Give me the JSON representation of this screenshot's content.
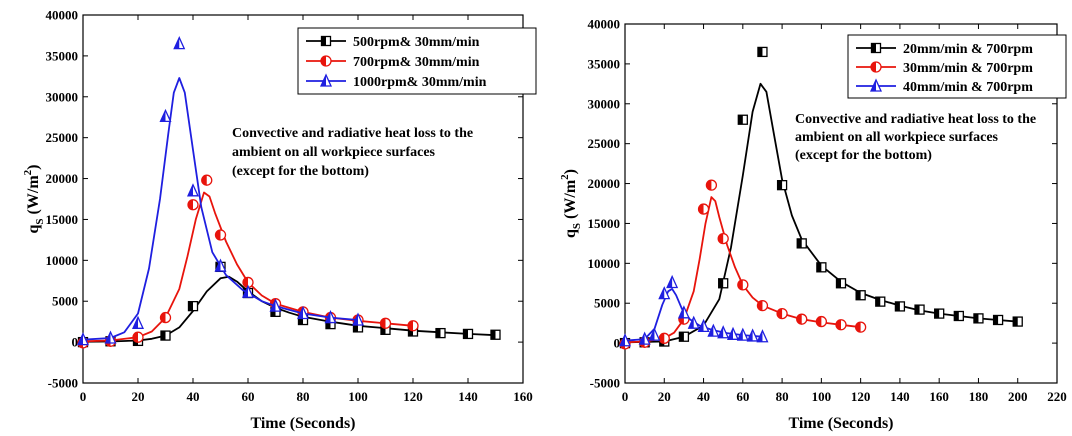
{
  "chart_data": [
    {
      "type": "line",
      "xlabel": "Time (Seconds)",
      "ylabel_main": "q",
      "ylabel_sub": "S",
      "ylabel_unit": " (W/m",
      "ylabel_sup": "2",
      "ylabel_close": ")",
      "xlim": [
        0,
        160
      ],
      "ylim": [
        -5000,
        40000
      ],
      "xticks": [
        0,
        20,
        40,
        60,
        80,
        100,
        120,
        140,
        160
      ],
      "yticks": [
        -5000,
        0,
        5000,
        10000,
        15000,
        20000,
        25000,
        30000,
        35000,
        40000
      ],
      "legend_position": "top-right",
      "annotation": [
        "Convective and radiative heat loss to the",
        "ambient on all workpiece surfaces",
        " (except for the bottom)"
      ],
      "series": [
        {
          "name": "500rpm& 30mm/min",
          "color": "#000000",
          "marker": "square",
          "points": [
            [
              0,
              0
            ],
            [
              10,
              100
            ],
            [
              20,
              150
            ],
            [
              30,
              800
            ],
            [
              40,
              4400
            ],
            [
              50,
              9200
            ],
            [
              60,
              6000
            ],
            [
              70,
              3700
            ],
            [
              80,
              2700
            ],
            [
              90,
              2200
            ],
            [
              100,
              1800
            ],
            [
              110,
              1500
            ],
            [
              120,
              1300
            ],
            [
              130,
              1100
            ],
            [
              140,
              1000
            ],
            [
              150,
              900
            ]
          ],
          "curve": [
            [
              0,
              50
            ],
            [
              10,
              80
            ],
            [
              20,
              200
            ],
            [
              25,
              400
            ],
            [
              30,
              800
            ],
            [
              35,
              1800
            ],
            [
              40,
              3800
            ],
            [
              45,
              6200
            ],
            [
              50,
              7800
            ],
            [
              53,
              8000
            ],
            [
              56,
              7400
            ],
            [
              60,
              6200
            ],
            [
              65,
              5000
            ],
            [
              70,
              4200
            ],
            [
              75,
              3600
            ],
            [
              80,
              3100
            ],
            [
              90,
              2500
            ],
            [
              100,
              2000
            ],
            [
              110,
              1700
            ],
            [
              120,
              1400
            ],
            [
              130,
              1200
            ],
            [
              140,
              1000
            ],
            [
              150,
              850
            ]
          ]
        },
        {
          "name": "700rpm& 30mm/min",
          "color": "#e8140c",
          "marker": "circle",
          "points": [
            [
              0,
              -100
            ],
            [
              10,
              100
            ],
            [
              20,
              600
            ],
            [
              30,
              3000
            ],
            [
              40,
              16800
            ],
            [
              45,
              19800
            ],
            [
              50,
              13100
            ],
            [
              60,
              7300
            ],
            [
              70,
              4700
            ],
            [
              80,
              3700
            ],
            [
              90,
              3000
            ],
            [
              100,
              2700
            ],
            [
              110,
              2300
            ],
            [
              120,
              2000
            ]
          ],
          "curve": [
            [
              0,
              100
            ],
            [
              10,
              200
            ],
            [
              20,
              600
            ],
            [
              25,
              1300
            ],
            [
              30,
              3000
            ],
            [
              35,
              6500
            ],
            [
              38,
              10500
            ],
            [
              41,
              15000
            ],
            [
              44,
              18300
            ],
            [
              46,
              17800
            ],
            [
              48,
              15800
            ],
            [
              52,
              12300
            ],
            [
              56,
              9500
            ],
            [
              60,
              7300
            ],
            [
              65,
              5700
            ],
            [
              70,
              4700
            ],
            [
              80,
              3700
            ],
            [
              90,
              3000
            ],
            [
              100,
              2600
            ],
            [
              110,
              2300
            ],
            [
              120,
              2000
            ]
          ]
        },
        {
          "name": "1000rpm& 30mm/min",
          "color": "#1f1fe0",
          "marker": "triangle",
          "points": [
            [
              0,
              300
            ],
            [
              10,
              500
            ],
            [
              20,
              2300
            ],
            [
              30,
              27600
            ],
            [
              35,
              36500
            ],
            [
              40,
              18500
            ],
            [
              50,
              9300
            ],
            [
              60,
              6100
            ],
            [
              70,
              4400
            ],
            [
              80,
              3500
            ],
            [
              90,
              3000
            ],
            [
              100,
              2700
            ]
          ],
          "curve": [
            [
              0,
              300
            ],
            [
              10,
              500
            ],
            [
              15,
              1200
            ],
            [
              20,
              3500
            ],
            [
              24,
              9000
            ],
            [
              28,
              17500
            ],
            [
              31,
              25500
            ],
            [
              33,
              30500
            ],
            [
              35,
              32300
            ],
            [
              37,
              30500
            ],
            [
              40,
              23500
            ],
            [
              43,
              16500
            ],
            [
              47,
              11000
            ],
            [
              52,
              8200
            ],
            [
              58,
              6400
            ],
            [
              65,
              5000
            ],
            [
              70,
              4400
            ],
            [
              80,
              3500
            ],
            [
              90,
              3000
            ],
            [
              100,
              2700
            ]
          ]
        }
      ]
    },
    {
      "type": "line",
      "xlabel": "Time (Seconds)",
      "ylabel_main": "q",
      "ylabel_sub": "S",
      "ylabel_unit": " (W/m",
      "ylabel_sup": "2",
      "ylabel_close": ")",
      "xlim": [
        0,
        220
      ],
      "ylim": [
        -5000,
        40000
      ],
      "xticks": [
        0,
        20,
        40,
        60,
        80,
        100,
        120,
        140,
        160,
        180,
        200,
        220
      ],
      "yticks": [
        -5000,
        0,
        5000,
        10000,
        15000,
        20000,
        25000,
        30000,
        35000,
        40000
      ],
      "legend_position": "top-right",
      "annotation": [
        "Convective and radiative heat loss to the",
        "ambient on all workpiece surfaces",
        " (except for the bottom)"
      ],
      "series": [
        {
          "name": "20mm/min & 700rpm",
          "color": "#000000",
          "marker": "square",
          "points": [
            [
              0,
              0
            ],
            [
              10,
              100
            ],
            [
              20,
              200
            ],
            [
              30,
              800
            ],
            [
              50,
              7500
            ],
            [
              60,
              28000
            ],
            [
              70,
              36500
            ],
            [
              80,
              19800
            ],
            [
              90,
              12500
            ],
            [
              100,
              9500
            ],
            [
              110,
              7500
            ],
            [
              120,
              6000
            ],
            [
              130,
              5200
            ],
            [
              140,
              4600
            ],
            [
              150,
              4200
            ],
            [
              160,
              3700
            ],
            [
              170,
              3400
            ],
            [
              180,
              3100
            ],
            [
              190,
              2900
            ],
            [
              200,
              2700
            ]
          ],
          "curve": [
            [
              0,
              100
            ],
            [
              20,
              200
            ],
            [
              30,
              800
            ],
            [
              40,
              2200
            ],
            [
              48,
              5500
            ],
            [
              54,
              12000
            ],
            [
              60,
              21000
            ],
            [
              65,
              29000
            ],
            [
              69,
              32500
            ],
            [
              72,
              31500
            ],
            [
              76,
              26000
            ],
            [
              80,
              20500
            ],
            [
              85,
              16000
            ],
            [
              90,
              13000
            ],
            [
              100,
              9700
            ],
            [
              110,
              7700
            ],
            [
              120,
              6300
            ],
            [
              130,
              5400
            ],
            [
              140,
              4700
            ],
            [
              150,
              4100
            ],
            [
              160,
              3700
            ],
            [
              170,
              3400
            ],
            [
              180,
              3100
            ],
            [
              190,
              2900
            ],
            [
              200,
              2700
            ]
          ]
        },
        {
          "name": "30mm/min & 700rpm",
          "color": "#e8140c",
          "marker": "circle",
          "points": [
            [
              0,
              -100
            ],
            [
              10,
              100
            ],
            [
              20,
              600
            ],
            [
              30,
              3000
            ],
            [
              40,
              16800
            ],
            [
              44,
              19800
            ],
            [
              50,
              13100
            ],
            [
              60,
              7300
            ],
            [
              70,
              4700
            ],
            [
              80,
              3700
            ],
            [
              90,
              3000
            ],
            [
              100,
              2700
            ],
            [
              110,
              2300
            ],
            [
              120,
              2000
            ]
          ],
          "curve": [
            [
              0,
              100
            ],
            [
              10,
              200
            ],
            [
              20,
              600
            ],
            [
              25,
              1300
            ],
            [
              30,
              3000
            ],
            [
              35,
              6500
            ],
            [
              38,
              10500
            ],
            [
              41,
              15000
            ],
            [
              44,
              18300
            ],
            [
              46,
              17800
            ],
            [
              48,
              15800
            ],
            [
              52,
              12300
            ],
            [
              56,
              9500
            ],
            [
              60,
              7300
            ],
            [
              65,
              5700
            ],
            [
              70,
              4700
            ],
            [
              80,
              3700
            ],
            [
              90,
              3000
            ],
            [
              100,
              2600
            ],
            [
              110,
              2300
            ],
            [
              120,
              2000
            ]
          ]
        },
        {
          "name": "40mm/min & 700rpm",
          "color": "#1f1fe0",
          "marker": "triangle",
          "points": [
            [
              0,
              300
            ],
            [
              10,
              500
            ],
            [
              15,
              1000
            ],
            [
              20,
              6200
            ],
            [
              24,
              7600
            ],
            [
              30,
              3800
            ],
            [
              35,
              2500
            ],
            [
              40,
              2100
            ],
            [
              45,
              1500
            ],
            [
              50,
              1300
            ],
            [
              55,
              1100
            ],
            [
              60,
              1000
            ],
            [
              65,
              900
            ],
            [
              70,
              800
            ]
          ],
          "curve": [
            [
              0,
              300
            ],
            [
              10,
              500
            ],
            [
              15,
              1800
            ],
            [
              19,
              4800
            ],
            [
              22,
              6500
            ],
            [
              24,
              6800
            ],
            [
              26,
              6000
            ],
            [
              29,
              4300
            ],
            [
              33,
              3000
            ],
            [
              38,
              2200
            ],
            [
              45,
              1600
            ],
            [
              52,
              1250
            ],
            [
              60,
              1000
            ],
            [
              70,
              800
            ]
          ]
        }
      ]
    }
  ]
}
